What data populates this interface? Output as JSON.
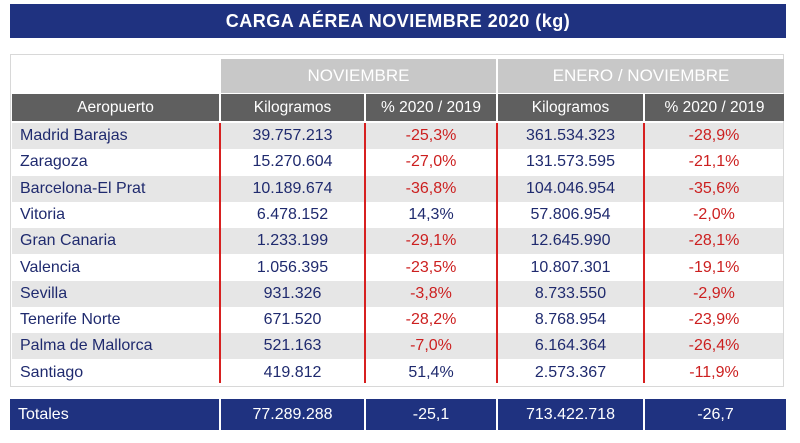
{
  "title": "CARGA AÉREA NOVIEMBRE 2020 (kg)",
  "groups": {
    "noviembre": "NOVIEMBRE",
    "enero_noviembre": "ENERO / NOVIEMBRE"
  },
  "columns": {
    "aeropuerto": "Aeropuerto",
    "kg_nov": "Kilogramos",
    "pct_nov": "% 2020 / 2019",
    "kg_ytd": "Kilogramos",
    "pct_ytd": "% 2020 / 2019"
  },
  "rows": [
    {
      "airport": "Madrid Barajas",
      "kg_nov": "39.757.213",
      "pct_nov": "-25,3%",
      "kg_ytd": "361.534.323",
      "pct_ytd": "-28,9%"
    },
    {
      "airport": "Zaragoza",
      "kg_nov": "15.270.604",
      "pct_nov": "-27,0%",
      "kg_ytd": "131.573.595",
      "pct_ytd": "-21,1%"
    },
    {
      "airport": "Barcelona-El Prat",
      "kg_nov": "10.189.674",
      "pct_nov": "-36,8%",
      "kg_ytd": "104.046.954",
      "pct_ytd": "-35,6%"
    },
    {
      "airport": "Vitoria",
      "kg_nov": "6.478.152",
      "pct_nov": "14,3%",
      "kg_ytd": "57.806.954",
      "pct_ytd": "-2,0%"
    },
    {
      "airport": "Gran Canaria",
      "kg_nov": "1.233.199",
      "pct_nov": "-29,1%",
      "kg_ytd": "12.645.990",
      "pct_ytd": "-28,1%"
    },
    {
      "airport": "Valencia",
      "kg_nov": "1.056.395",
      "pct_nov": "-23,5%",
      "kg_ytd": "10.807.301",
      "pct_ytd": "-19,1%"
    },
    {
      "airport": "Sevilla",
      "kg_nov": "931.326",
      "pct_nov": "-3,8%",
      "kg_ytd": "8.733.550",
      "pct_ytd": "-2,9%"
    },
    {
      "airport": "Tenerife Norte",
      "kg_nov": "671.520",
      "pct_nov": "-28,2%",
      "kg_ytd": "8.768.954",
      "pct_ytd": "-23,9%"
    },
    {
      "airport": "Palma de Mallorca",
      "kg_nov": "521.163",
      "pct_nov": "-7,0%",
      "kg_ytd": "6.164.364",
      "pct_ytd": "-26,4%"
    },
    {
      "airport": "Santiago",
      "kg_nov": "419.812",
      "pct_nov": "51,4%",
      "kg_ytd": "2.573.367",
      "pct_ytd": "-11,9%"
    }
  ],
  "totals": {
    "label": "Totales",
    "kg_nov": "77.289.288",
    "pct_nov": "-25,1",
    "kg_ytd": "713.422.718",
    "pct_ytd": "-26,7"
  },
  "colors": {
    "navy": "#1f3280",
    "header_gray": "#5f5f5f",
    "group_gray": "#c8c8c8",
    "negative": "#cc1f1f",
    "positive": "#1f2a6e",
    "separator": "#d72020"
  }
}
